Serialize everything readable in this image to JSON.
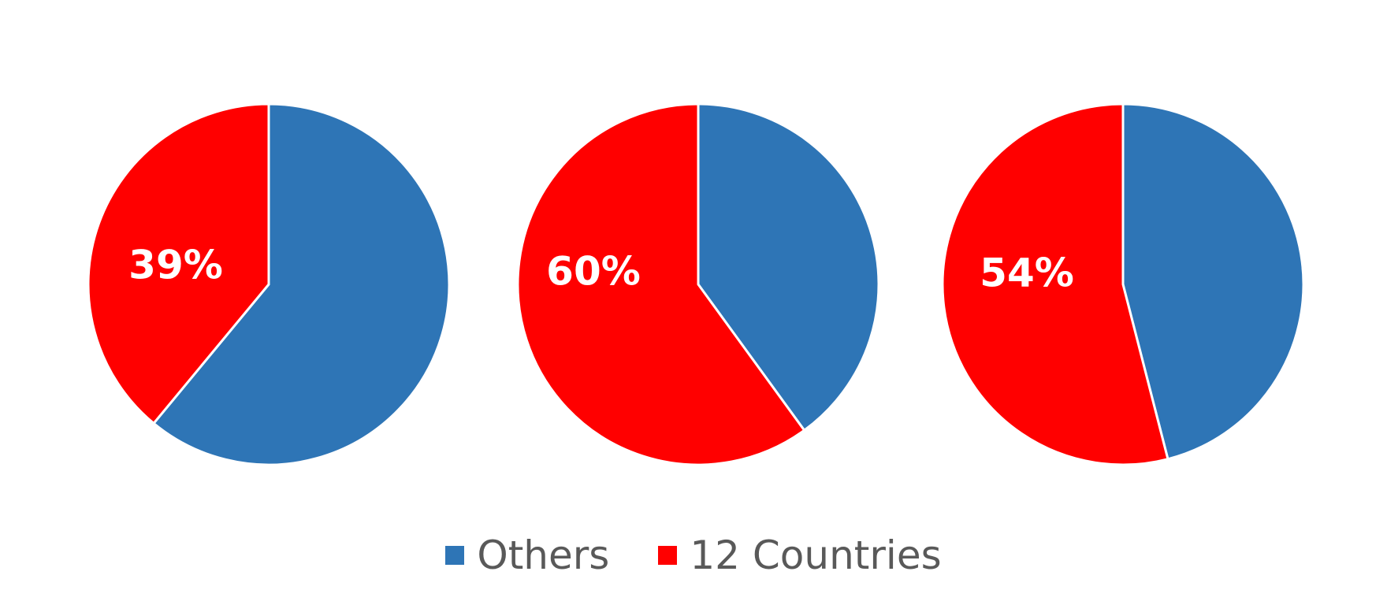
{
  "chart_data": {
    "type": "pie",
    "series_names": [
      "Others",
      "12 Countries"
    ],
    "colors": {
      "Others": "#2E75B6",
      "12 Countries": "#FF0000"
    },
    "legend_position": "bottom",
    "pies": [
      {
        "slices": [
          {
            "name": "Others",
            "value": 61
          },
          {
            "name": "12 Countries",
            "value": 39
          }
        ],
        "label": "39%"
      },
      {
        "slices": [
          {
            "name": "Others",
            "value": 40
          },
          {
            "name": "12 Countries",
            "value": 60
          }
        ],
        "label": "60%"
      },
      {
        "slices": [
          {
            "name": "Others",
            "value": 46
          },
          {
            "name": "12 Countries",
            "value": 54
          }
        ],
        "label": "54%"
      }
    ]
  },
  "legend": {
    "items": [
      {
        "label": "Others",
        "color": "#2E75B6"
      },
      {
        "label": "12 Countries",
        "color": "#FF0000"
      }
    ]
  }
}
